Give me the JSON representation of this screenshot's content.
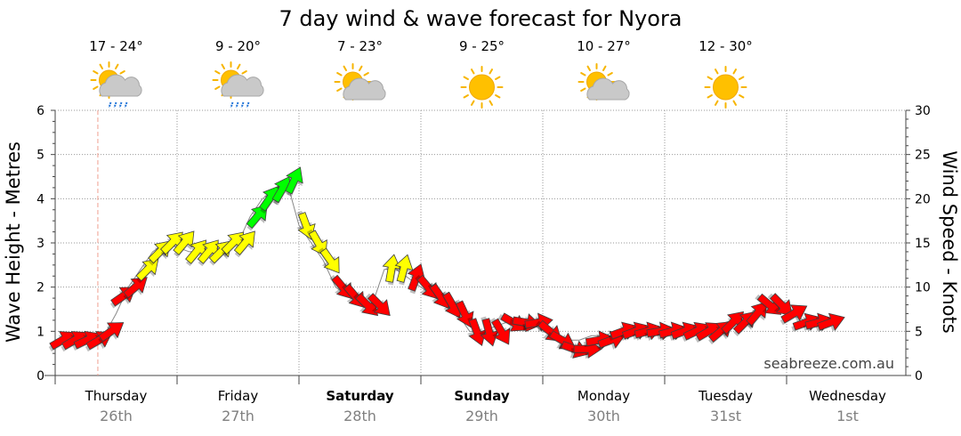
{
  "chart_data": {
    "type": "line",
    "title": "7 day wind & wave forecast for Nyora",
    "ylabel_left": "Wave Height - Metres",
    "ylabel_right": "Wind Speed - Knots",
    "y_left_range": [
      0,
      6
    ],
    "y_right_range": [
      0,
      30
    ],
    "y_left_ticks": [
      "0",
      "1",
      "2",
      "3",
      "4",
      "5",
      "6"
    ],
    "y_right_ticks": [
      "0",
      "5",
      "10",
      "15",
      "20",
      "25",
      "30"
    ],
    "grid": true,
    "days": [
      {
        "name": "Thursday",
        "date": "26th",
        "bold": false,
        "temp": "17 - 24°",
        "icon": "sun-cloud-rain-icon"
      },
      {
        "name": "Friday",
        "date": "27th",
        "bold": false,
        "temp": "9 - 20°",
        "icon": "sun-cloud-rain-icon"
      },
      {
        "name": "Saturday",
        "date": "28th",
        "bold": true,
        "temp": "7 - 23°",
        "icon": "sun-cloud-icon"
      },
      {
        "name": "Sunday",
        "date": "29th",
        "bold": true,
        "temp": "9 - 25°",
        "icon": "sun-icon"
      },
      {
        "name": "Monday",
        "date": "30th",
        "bold": false,
        "temp": "10 - 27°",
        "icon": "sun-cloud-icon"
      },
      {
        "name": "Tuesday",
        "date": "31st",
        "bold": false,
        "temp": "12 - 30°",
        "icon": "sun-icon"
      },
      {
        "name": "Wednesday",
        "date": "1st",
        "bold": false,
        "temp": "",
        "icon": ""
      }
    ],
    "wind_colors": {
      "low": "#ff0000",
      "mid": "#ffff00",
      "high": "#00ff00"
    },
    "series": [
      {
        "name": "wind",
        "unit": "knots",
        "x_days": [
          0.0,
          0.1,
          0.2,
          0.3,
          0.4,
          0.5,
          0.6,
          0.7,
          0.8,
          0.9,
          1.0,
          1.1,
          1.2,
          1.3,
          1.4,
          1.5,
          1.6,
          1.7,
          1.8,
          1.9,
          2.0,
          2.1,
          2.2,
          2.3,
          2.4,
          2.5,
          2.6,
          2.7,
          2.8,
          2.9,
          3.0,
          3.1,
          3.2,
          3.3,
          3.4,
          3.5,
          3.6,
          3.7,
          3.8,
          3.9,
          4.0,
          4.1,
          4.2,
          4.3,
          4.4,
          4.5,
          4.6,
          4.7,
          4.8,
          4.9,
          5.0,
          5.1,
          5.2,
          5.3,
          5.4,
          5.5,
          5.6,
          5.7,
          5.8,
          5.9,
          6.0,
          6.1,
          6.2,
          6.3
        ],
        "values": [
          4,
          4,
          4,
          4,
          5,
          9,
          10,
          12,
          14,
          15,
          15,
          14,
          14,
          14,
          15,
          15,
          18,
          20,
          21,
          22,
          17,
          15,
          13,
          10,
          9,
          8,
          8,
          12,
          12,
          11,
          10,
          9,
          8,
          7,
          5,
          5,
          5,
          6,
          6,
          6,
          5,
          4,
          3,
          3,
          4,
          4,
          5,
          5,
          5,
          5,
          5,
          5,
          5,
          5,
          5,
          6,
          6,
          7,
          8,
          8,
          7,
          6,
          6,
          6
        ],
        "directions_deg": [
          60,
          60,
          65,
          60,
          55,
          55,
          50,
          45,
          45,
          45,
          40,
          40,
          40,
          45,
          45,
          40,
          40,
          35,
          30,
          25,
          160,
          150,
          145,
          140,
          140,
          135,
          135,
          10,
          15,
          20,
          140,
          145,
          150,
          155,
          160,
          165,
          150,
          120,
          100,
          80,
          130,
          120,
          110,
          90,
          80,
          70,
          70,
          70,
          75,
          80,
          75,
          70,
          65,
          60,
          50,
          45,
          45,
          40,
          130,
          135,
          60,
          70,
          75,
          70
        ]
      },
      {
        "name": "wave",
        "unit": "metres",
        "x_days": [
          0.0,
          0.1,
          0.2,
          0.3,
          0.4,
          0.5,
          0.6,
          0.7,
          0.8,
          0.9,
          1.0,
          1.1,
          1.2,
          1.3,
          1.4,
          1.5,
          1.6,
          1.7,
          1.8,
          1.9,
          2.0,
          2.1,
          2.2,
          2.3,
          2.4,
          2.5,
          2.6,
          2.7,
          2.8,
          2.9,
          3.0,
          3.1,
          3.2,
          3.3,
          3.4,
          3.5,
          3.6,
          3.7,
          3.8,
          3.9,
          4.0,
          4.1,
          4.2,
          4.3,
          4.4,
          4.5,
          4.6,
          4.7,
          4.8,
          4.9,
          5.0,
          5.1,
          5.2,
          5.3,
          5.4,
          5.5,
          5.6,
          5.7,
          5.8,
          5.9,
          6.0,
          6.1,
          6.2,
          6.3
        ],
        "values": [
          0.8,
          0.8,
          0.8,
          0.8,
          0.9,
          1.4,
          2.0,
          2.4,
          2.8,
          3.0,
          2.9,
          2.8,
          2.8,
          2.8,
          2.9,
          3.0,
          3.6,
          4.0,
          4.2,
          4.4,
          3.4,
          3.0,
          2.6,
          2.0,
          1.8,
          1.6,
          1.6,
          2.4,
          2.4,
          2.2,
          2.0,
          1.8,
          1.6,
          1.4,
          1.0,
          1.0,
          1.1,
          1.2,
          1.2,
          1.2,
          1.0,
          0.9,
          0.8,
          0.8,
          0.9,
          0.9,
          1.0,
          1.0,
          1.0,
          1.0,
          1.0,
          1.0,
          1.0,
          1.1,
          1.1,
          1.2,
          1.3,
          1.4,
          1.6,
          1.5,
          1.4,
          1.3,
          1.2,
          1.2
        ]
      }
    ],
    "now_marker_day": 0.35,
    "watermark": "seabreeze.com.au"
  }
}
